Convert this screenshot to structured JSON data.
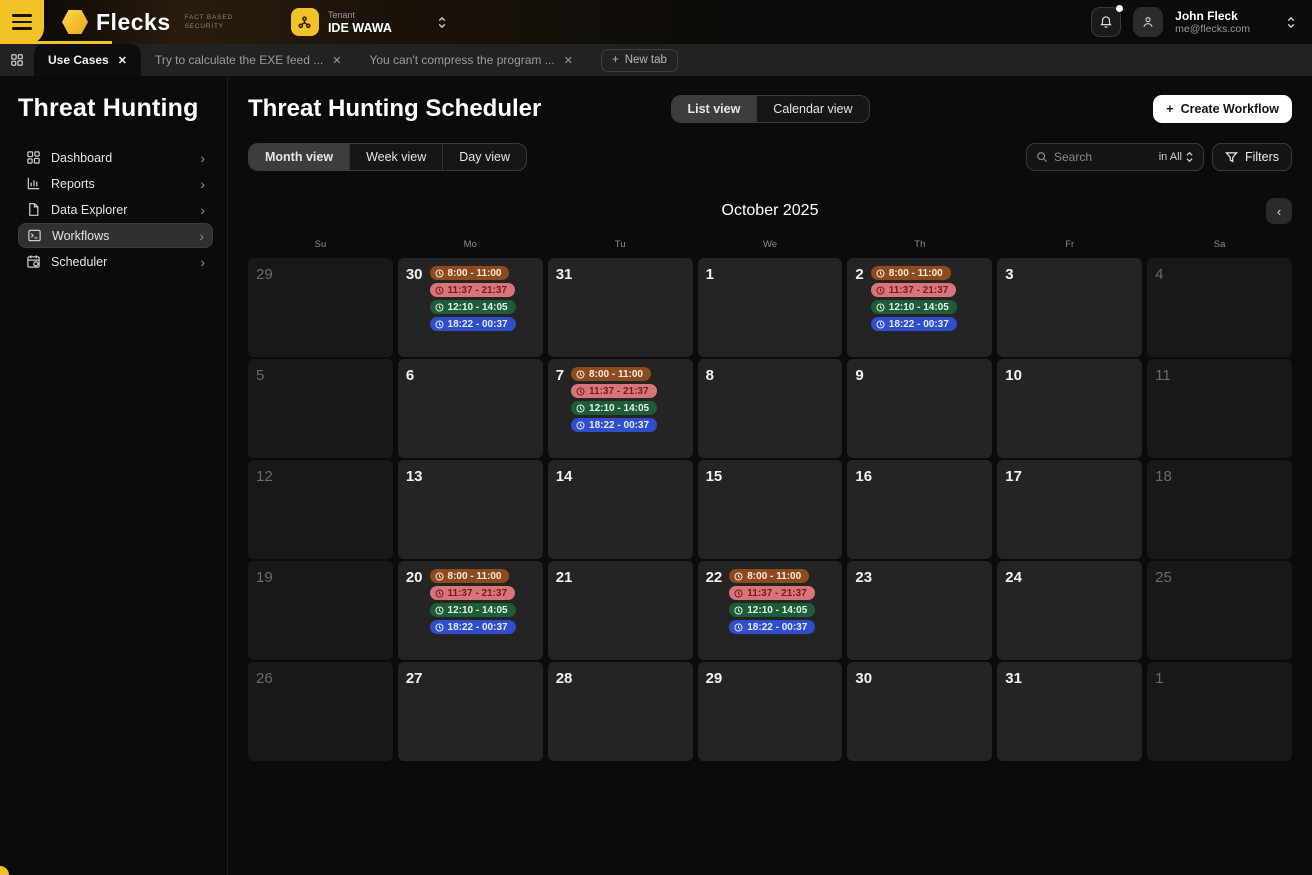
{
  "colors": {
    "accent": "#F2C329",
    "event_orange_bg": "#8C4A1E",
    "event_orange_fg": "#FFE9DB",
    "event_red_bg": "#D67679",
    "event_red_fg": "#77191D",
    "event_green_bg": "#1E5C39",
    "event_green_fg": "#E2F3E8",
    "event_blue_bg": "#2F4EC9",
    "event_blue_fg": "#E4E9FF"
  },
  "topbar": {
    "brand": "Flecks",
    "tagline_line1": "FACT BASED",
    "tagline_line2": "SECURITY",
    "tenant_label": "Tenant",
    "tenant_name": "IDE WAWA",
    "user_name": "John Fleck",
    "user_email": "me@flecks.com"
  },
  "tabbar": {
    "tabs": [
      {
        "label": "Use Cases",
        "active": true
      },
      {
        "label": "Try to calculate the EXE feed ...",
        "active": false
      },
      {
        "label": "You can't compress the program ...",
        "active": false
      }
    ],
    "new_tab_label": "New tab"
  },
  "sidebar": {
    "title": "Threat Hunting",
    "items": [
      {
        "label": "Dashboard",
        "icon": "dashboard-icon",
        "active": false
      },
      {
        "label": "Reports",
        "icon": "reports-icon",
        "active": false
      },
      {
        "label": "Data Explorer",
        "icon": "data-explorer-icon",
        "active": false
      },
      {
        "label": "Workflows",
        "icon": "workflows-icon",
        "active": true
      },
      {
        "label": "Scheduler",
        "icon": "scheduler-icon",
        "active": false
      }
    ]
  },
  "toolbar": {
    "title": "Threat Hunting Scheduler",
    "view_modes": [
      {
        "label": "List view",
        "active": true
      },
      {
        "label": "Calendar view",
        "active": false
      }
    ],
    "range_modes": [
      {
        "label": "Month view",
        "active": true
      },
      {
        "label": "Week view",
        "active": false
      },
      {
        "label": "Day view",
        "active": false
      }
    ],
    "search_placeholder": "Search",
    "search_scope": "in All",
    "filters_label": "Filters",
    "create_label": "Create Workflow"
  },
  "calendar": {
    "month_title": "October 2025",
    "weekdays": [
      "Su",
      "Mo",
      "Tu",
      "We",
      "Th",
      "Fr",
      "Sa"
    ],
    "event_times": [
      {
        "time": "8:00 - 11:00",
        "bg": "#8C4A1E",
        "fg": "#FFE9DB"
      },
      {
        "time": "11:37 - 21:37",
        "bg": "#D67679",
        "fg": "#77191D"
      },
      {
        "time": "12:10 - 14:05",
        "bg": "#1E5C39",
        "fg": "#E2F3E8"
      },
      {
        "time": "18:22 - 00:37",
        "bg": "#2F4EC9",
        "fg": "#E4E9FF"
      }
    ],
    "weeks": [
      [
        {
          "day": "29",
          "muted": true
        },
        {
          "day": "30",
          "events": true
        },
        {
          "day": "31"
        },
        {
          "day": "1"
        },
        {
          "day": "2",
          "events": true
        },
        {
          "day": "3"
        },
        {
          "day": "4",
          "muted": true
        }
      ],
      [
        {
          "day": "5",
          "muted": true
        },
        {
          "day": "6"
        },
        {
          "day": "7",
          "events": true
        },
        {
          "day": "8"
        },
        {
          "day": "9"
        },
        {
          "day": "10"
        },
        {
          "day": "11",
          "muted": true
        }
      ],
      [
        {
          "day": "12",
          "muted": true
        },
        {
          "day": "13"
        },
        {
          "day": "14"
        },
        {
          "day": "15"
        },
        {
          "day": "16"
        },
        {
          "day": "17"
        },
        {
          "day": "18",
          "muted": true
        }
      ],
      [
        {
          "day": "19",
          "muted": true
        },
        {
          "day": "20",
          "events": true
        },
        {
          "day": "21"
        },
        {
          "day": "22",
          "events": true
        },
        {
          "day": "23"
        },
        {
          "day": "24"
        },
        {
          "day": "25",
          "muted": true
        }
      ],
      [
        {
          "day": "26",
          "muted": true
        },
        {
          "day": "27"
        },
        {
          "day": "28"
        },
        {
          "day": "29"
        },
        {
          "day": "30"
        },
        {
          "day": "31"
        },
        {
          "day": "1",
          "muted": true
        }
      ]
    ]
  }
}
